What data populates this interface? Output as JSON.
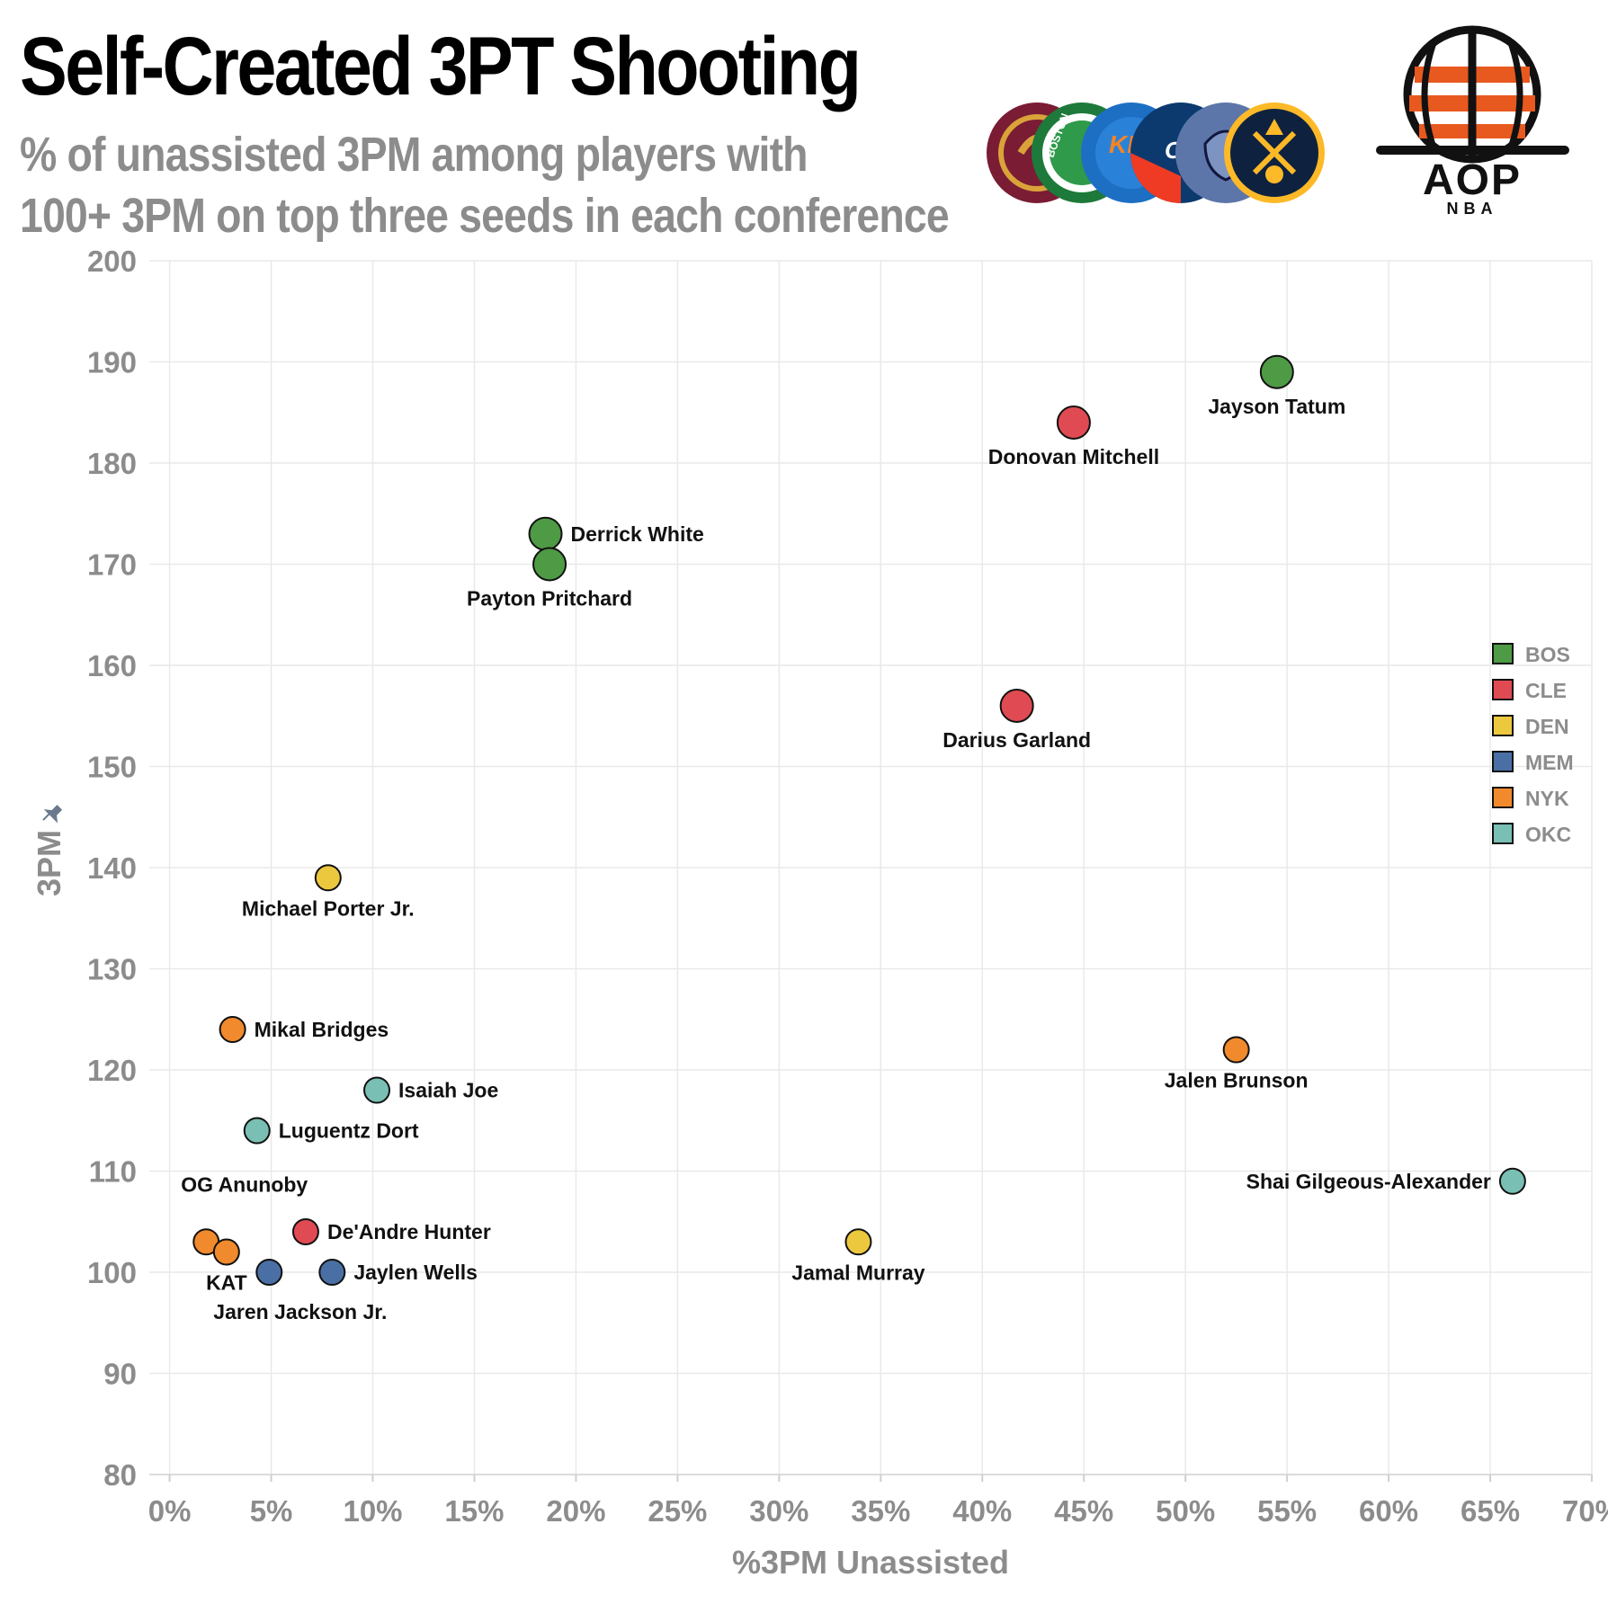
{
  "header": {
    "title": "Self-Created 3PT Shooting",
    "subtitle_line1": "% of unassisted 3PM among players with",
    "subtitle_line2": "100+ 3PM on top three seeds in each conference"
  },
  "brand": {
    "logo_main": "AOP",
    "logo_sub": "NBA",
    "team_logos": [
      "CLE",
      "BOS",
      "NYK",
      "OKC",
      "MEM",
      "DEN"
    ],
    "logo_text_boston": "BOSTON",
    "logo_text_knicks": "KNI",
    "logo_text_okc": "OKC"
  },
  "colors": {
    "BOS": "#4e9a45",
    "CLE": "#e04a52",
    "DEN": "#ecc83f",
    "MEM": "#4a6fa5",
    "NYK": "#f08a2c",
    "OKC": "#79bfb3",
    "grid": "#e9e9e9",
    "axis_text": "#8c8c8c",
    "aop_orange": "#e8591f"
  },
  "chart_data": {
    "type": "scatter",
    "title": "Self-Created 3PT Shooting",
    "xlabel": "%3PM Unassisted",
    "ylabel": "3PM",
    "xlim": [
      -1,
      70
    ],
    "ylim": [
      80,
      200
    ],
    "xticks": [
      0,
      5,
      10,
      15,
      20,
      25,
      30,
      35,
      40,
      45,
      50,
      55,
      60,
      65,
      70
    ],
    "xtick_labels": [
      "0%",
      "5%",
      "10%",
      "15%",
      "20%",
      "25%",
      "30%",
      "35%",
      "40%",
      "45%",
      "50%",
      "55%",
      "60%",
      "65%",
      "70%"
    ],
    "yticks": [
      80,
      90,
      100,
      110,
      120,
      130,
      140,
      150,
      160,
      170,
      180,
      190,
      200
    ],
    "ytick_labels": [
      "80",
      "90",
      "100",
      "110",
      "120",
      "130",
      "140",
      "150",
      "160",
      "170",
      "180",
      "190",
      "200"
    ],
    "legend": {
      "position": "right",
      "entries": [
        "BOS",
        "CLE",
        "DEN",
        "MEM",
        "NYK",
        "OKC"
      ]
    },
    "points": [
      {
        "name": "Jayson Tatum",
        "team": "BOS",
        "x": 54.5,
        "y": 189,
        "label_pos": "below"
      },
      {
        "name": "Donovan Mitchell",
        "team": "CLE",
        "x": 44.5,
        "y": 184,
        "label_pos": "below"
      },
      {
        "name": "Derrick White",
        "team": "BOS",
        "x": 18.5,
        "y": 173,
        "label_pos": "right"
      },
      {
        "name": "Payton Pritchard",
        "team": "BOS",
        "x": 18.7,
        "y": 170,
        "label_pos": "below"
      },
      {
        "name": "Darius Garland",
        "team": "CLE",
        "x": 41.7,
        "y": 156,
        "label_pos": "below"
      },
      {
        "name": "Michael Porter Jr.",
        "team": "DEN",
        "x": 7.8,
        "y": 139,
        "label_pos": "below"
      },
      {
        "name": "Mikal Bridges",
        "team": "NYK",
        "x": 3.1,
        "y": 124,
        "label_pos": "right"
      },
      {
        "name": "Jalen Brunson",
        "team": "NYK",
        "x": 52.5,
        "y": 122,
        "label_pos": "below"
      },
      {
        "name": "Isaiah Joe",
        "team": "OKC",
        "x": 10.2,
        "y": 118,
        "label_pos": "right"
      },
      {
        "name": "Luguentz Dort",
        "team": "OKC",
        "x": 4.3,
        "y": 114,
        "label_pos": "right"
      },
      {
        "name": "Shai Gilgeous-Alexander",
        "team": "OKC",
        "x": 66.1,
        "y": 109,
        "label_pos": "left"
      },
      {
        "name": "De'Andre Hunter",
        "team": "CLE",
        "x": 6.7,
        "y": 104,
        "label_pos": "right"
      },
      {
        "name": "Jamal Murray",
        "team": "DEN",
        "x": 33.9,
        "y": 103,
        "label_pos": "below"
      },
      {
        "name": "OG Anunoby",
        "team": "NYK",
        "x": 1.8,
        "y": 103,
        "label_pos": "above-right"
      },
      {
        "name": "KAT",
        "team": "NYK",
        "x": 2.8,
        "y": 102,
        "label_pos": "below"
      },
      {
        "name": "Jaren Jackson Jr.",
        "team": "MEM",
        "x": 4.9,
        "y": 100,
        "label_pos": "below-right"
      },
      {
        "name": "Jaylen Wells",
        "team": "MEM",
        "x": 8.0,
        "y": 100,
        "label_pos": "right"
      }
    ]
  }
}
